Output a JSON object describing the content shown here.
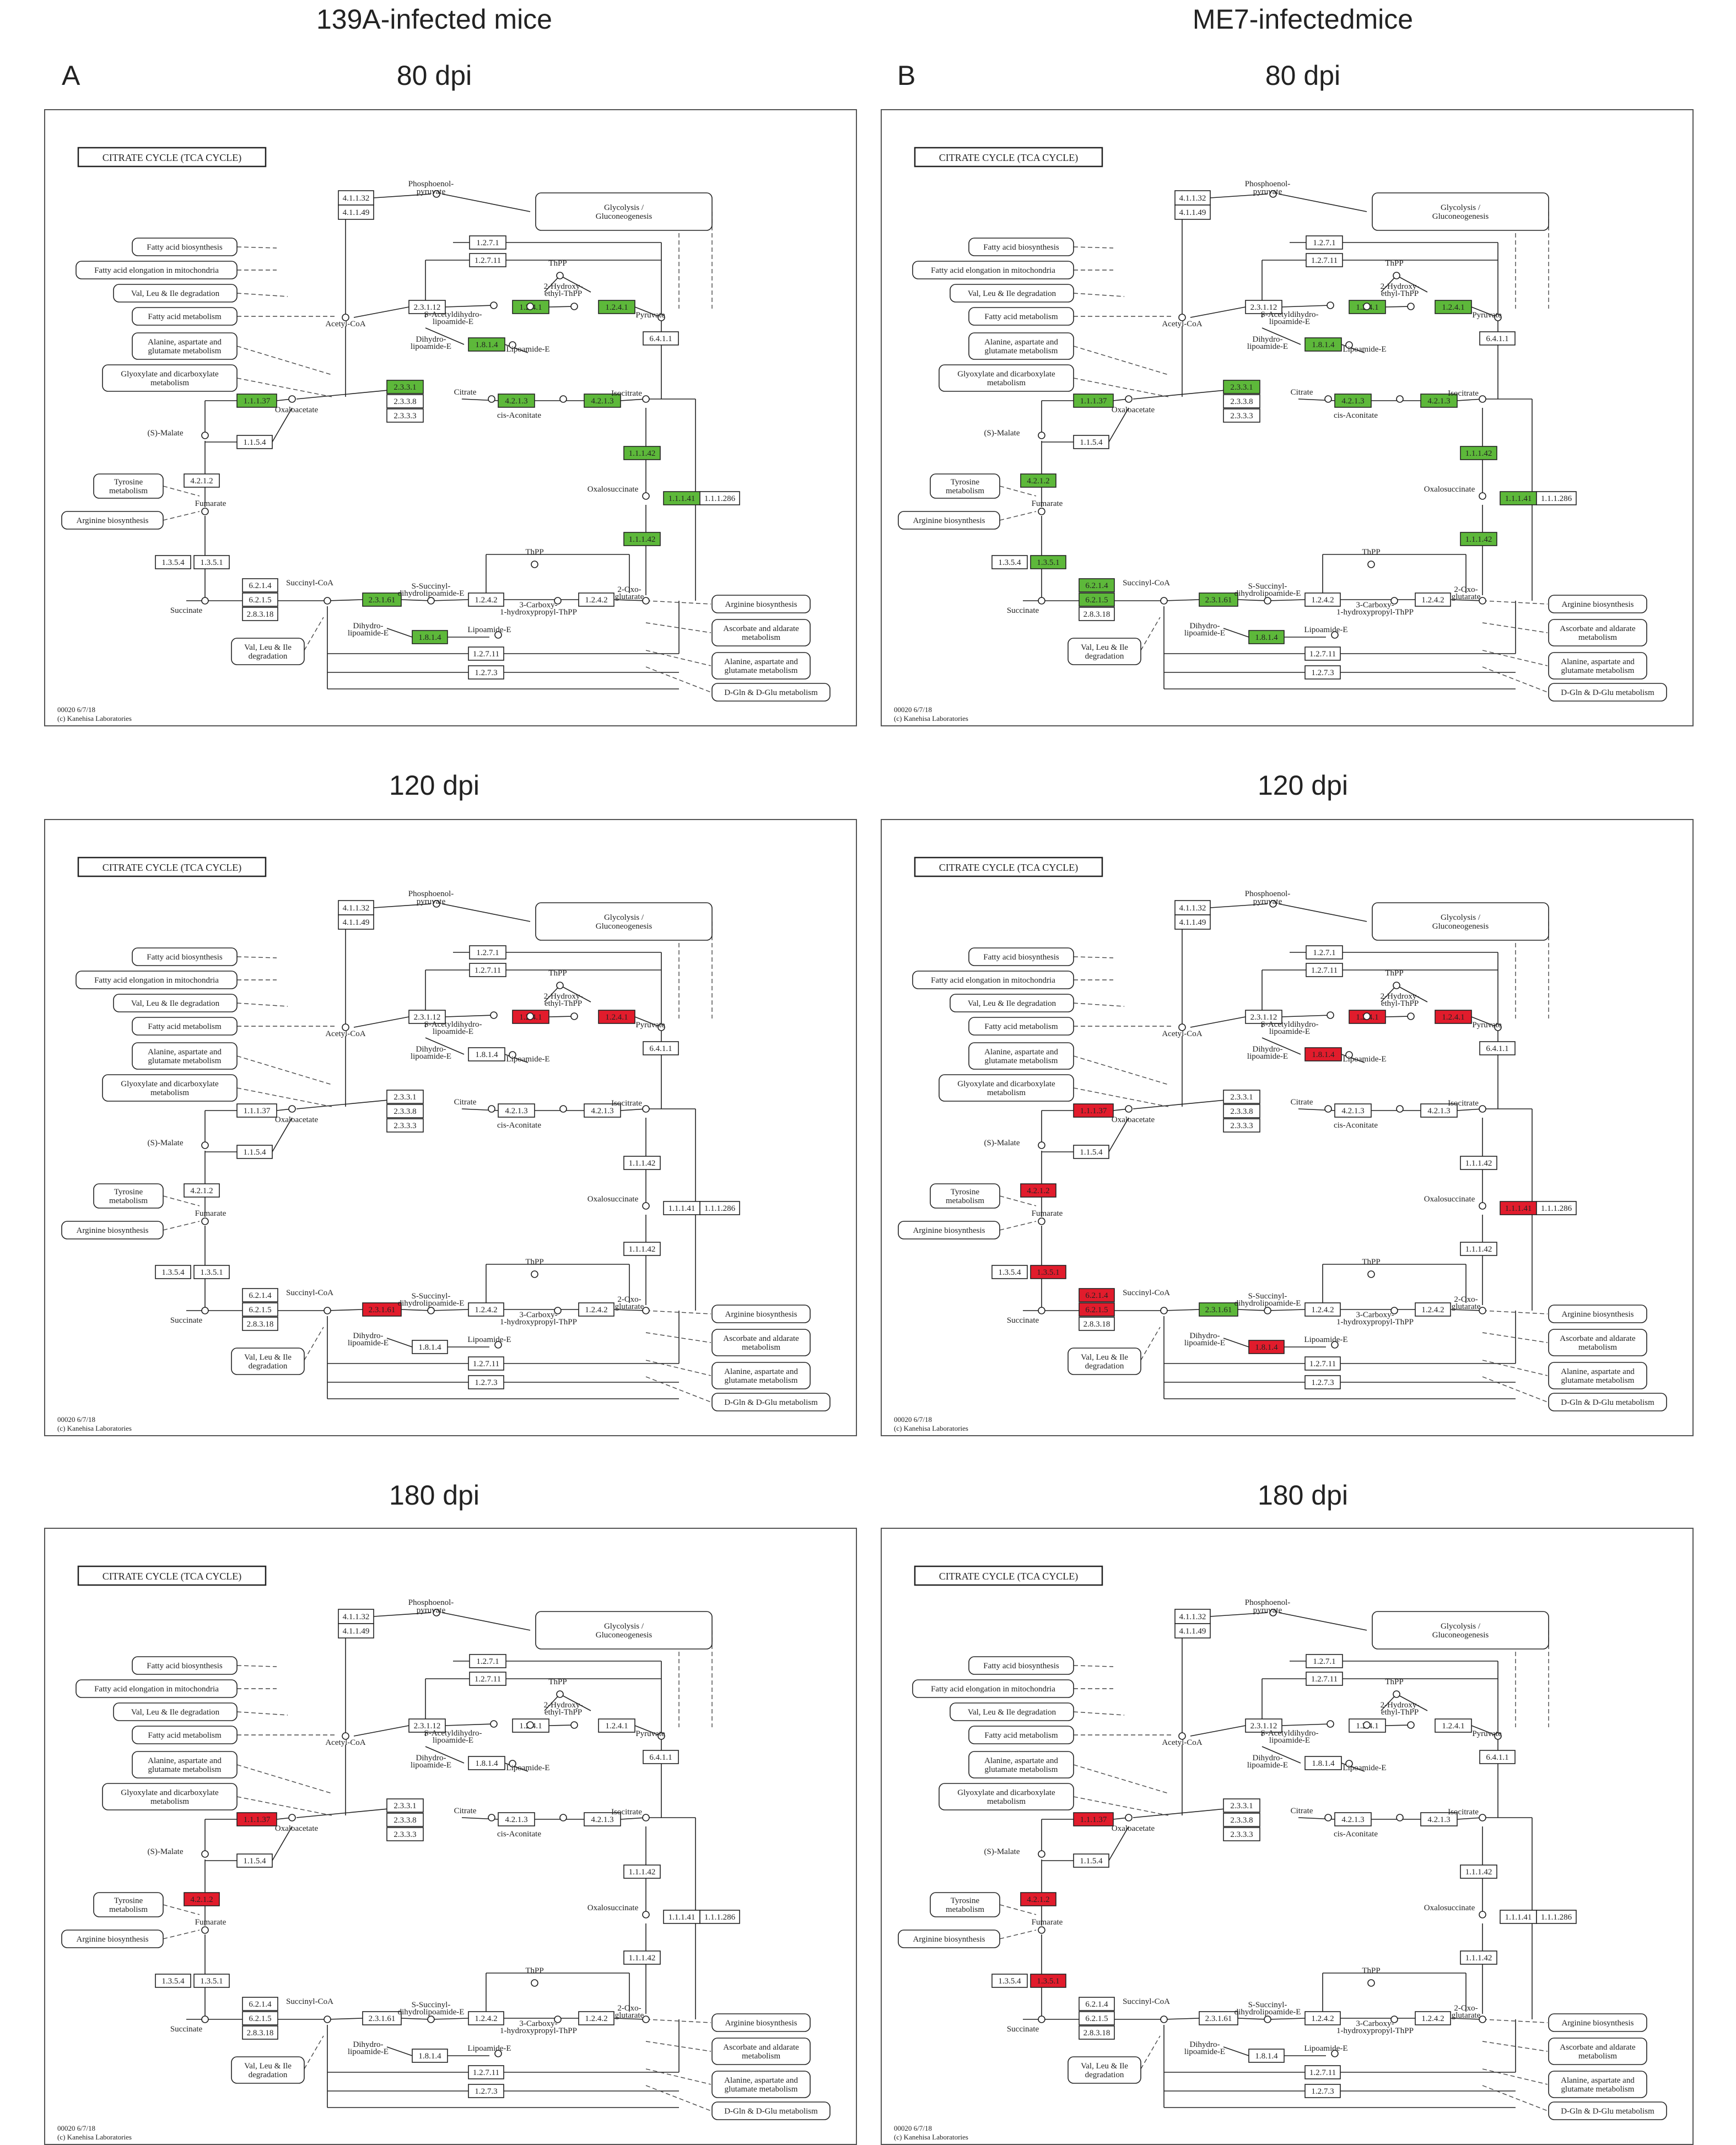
{
  "columns": [
    {
      "title": "139A-infected mice",
      "letter": "A"
    },
    {
      "title": "ME7-infectedmice",
      "letter": "B"
    }
  ],
  "rows": [
    "80 dpi",
    "120 dpi",
    "180 dpi"
  ],
  "pathway": {
    "title": "CITRATE CYCLE (TCA CYCLE)",
    "footer_line1": "00020 6/7/18",
    "footer_line2": "(c) Kanehisa Laboratories",
    "enzymes": [
      {
        "id": "e41132",
        "label": "4.1.1.32"
      },
      {
        "id": "e41149",
        "label": "4.1.1.49"
      },
      {
        "id": "e1271a",
        "label": "1.2.7.1"
      },
      {
        "id": "e12711a",
        "label": "1.2.7.11"
      },
      {
        "id": "e23112",
        "label": "2.3.1.12"
      },
      {
        "id": "e1241a",
        "label": "1.2.4.1"
      },
      {
        "id": "e1241b",
        "label": "1.2.4.1"
      },
      {
        "id": "e1814a",
        "label": "1.8.1.4"
      },
      {
        "id": "e6411",
        "label": "6.4.1.1"
      },
      {
        "id": "e2331",
        "label": "2.3.3.1"
      },
      {
        "id": "e2338",
        "label": "2.3.3.8"
      },
      {
        "id": "e2333",
        "label": "2.3.3.3"
      },
      {
        "id": "e4213a",
        "label": "4.2.1.3"
      },
      {
        "id": "e4213b",
        "label": "4.2.1.3"
      },
      {
        "id": "e11137",
        "label": "1.1.1.37"
      },
      {
        "id": "e1154",
        "label": "1.1.5.4"
      },
      {
        "id": "e11142a",
        "label": "1.1.1.42"
      },
      {
        "id": "e11141",
        "label": "1.1.1.41"
      },
      {
        "id": "e111286",
        "label": "1.1.1.286"
      },
      {
        "id": "e11142b",
        "label": "1.1.1.42"
      },
      {
        "id": "e4212",
        "label": "4.2.1.2"
      },
      {
        "id": "e1354",
        "label": "1.3.5.4"
      },
      {
        "id": "e1351",
        "label": "1.3.5.1"
      },
      {
        "id": "e6214",
        "label": "6.2.1.4"
      },
      {
        "id": "e6215",
        "label": "6.2.1.5"
      },
      {
        "id": "e28318",
        "label": "2.8.3.18"
      },
      {
        "id": "e23161",
        "label": "2.3.1.61"
      },
      {
        "id": "e1242",
        "label": "1.2.4.2"
      },
      {
        "id": "e1242b",
        "label": "1.2.4.2"
      },
      {
        "id": "e1814b",
        "label": "1.8.1.4"
      },
      {
        "id": "e12711b",
        "label": "1.2.7.11"
      },
      {
        "id": "e1273",
        "label": "1.2.7.3"
      }
    ],
    "compounds": [
      {
        "id": "pep",
        "label": "Phosphoenol-"
      },
      {
        "id": "pep2",
        "label": "pyruvate"
      },
      {
        "id": "acoa",
        "label": "Acetyl-CoA"
      },
      {
        "id": "pyr",
        "label": "Pyruvate"
      },
      {
        "id": "thpp1",
        "label": "ThPP"
      },
      {
        "id": "hyd1",
        "label": "2-Hydroxy-"
      },
      {
        "id": "hyd2",
        "label": "ethyl-ThPP"
      },
      {
        "id": "sac1",
        "label": "S-Acetyldihydro-"
      },
      {
        "id": "sac2",
        "label": "lipoamide-E"
      },
      {
        "id": "dih1",
        "label": "Dihydro-"
      },
      {
        "id": "dih2",
        "label": "lipoamide-E"
      },
      {
        "id": "lip1",
        "label": "Lipoamide-E"
      },
      {
        "id": "cit",
        "label": "Citrate"
      },
      {
        "id": "oaa",
        "label": "Oxaloacetate"
      },
      {
        "id": "cis",
        "label": "cis-Aconitate"
      },
      {
        "id": "iso",
        "label": "Isocitrate"
      },
      {
        "id": "mal",
        "label": "(S)-Malate"
      },
      {
        "id": "oxs",
        "label": "Oxalosuccinate"
      },
      {
        "id": "fum",
        "label": "Fumarate"
      },
      {
        "id": "suc",
        "label": "Succinate"
      },
      {
        "id": "scoa",
        "label": "Succinyl-CoA"
      },
      {
        "id": "ssuc1",
        "label": "S-Succinyl-"
      },
      {
        "id": "ssuc2",
        "label": "dihydrolipoamide-E"
      },
      {
        "id": "dih3",
        "label": "Dihydro-"
      },
      {
        "id": "dih4",
        "label": "lipoamide-E"
      },
      {
        "id": "lip2",
        "label": "Lipoamide-E"
      },
      {
        "id": "thpp2",
        "label": "ThPP"
      },
      {
        "id": "carb1",
        "label": "3-Carboxy-"
      },
      {
        "id": "carb2",
        "label": "1-hydroxypropyl-ThPP"
      },
      {
        "id": "oxo1",
        "label": "2-Oxo-"
      },
      {
        "id": "oxo2",
        "label": "glutarate"
      }
    ],
    "maps": [
      {
        "id": "glyc1",
        "label": "Glycolysis /"
      },
      {
        "id": "glyc2",
        "label": "Gluconeogenesis"
      },
      {
        "id": "fab",
        "label": "Fatty acid biosynthesis"
      },
      {
        "id": "fae",
        "label": "Fatty acid elongation in mitochondria"
      },
      {
        "id": "vli",
        "label": "Val, Leu & Ile degradation"
      },
      {
        "id": "fam",
        "label": "Fatty acid metabolism"
      },
      {
        "id": "ala1",
        "label": "Alanine, aspartate and"
      },
      {
        "id": "ala2",
        "label": "glutamate metabolism"
      },
      {
        "id": "gly1",
        "label": "Glyoxylate and dicarboxylate"
      },
      {
        "id": "gly2",
        "label": "metabolism"
      },
      {
        "id": "tyr1",
        "label": "Tyrosine"
      },
      {
        "id": "tyr2",
        "label": "metabolism"
      },
      {
        "id": "arg",
        "label": "Arginine biosynthesis"
      },
      {
        "id": "vli2a",
        "label": "Val, Leu & Ile"
      },
      {
        "id": "vli2b",
        "label": "degradation"
      },
      {
        "id": "argr",
        "label": "Arginine biosynthesis"
      },
      {
        "id": "asc1",
        "label": "Ascorbate and aldarate"
      },
      {
        "id": "asc2",
        "label": "metabolism"
      },
      {
        "id": "alr1",
        "label": "Alanine, aspartate and"
      },
      {
        "id": "alr2",
        "label": "glutamate metabolism"
      },
      {
        "id": "dgln",
        "label": "D-Gln & D-Glu metabolism"
      }
    ]
  },
  "colors": {
    "up": "#5db83a",
    "down": "#e11c2c",
    "none": "#ffffff"
  },
  "highlights": [
    {
      "e1241a": "up",
      "e1241b": "up",
      "e1814a": "up",
      "e2331": "up",
      "e4213a": "up",
      "e4213b": "up",
      "e11137": "up",
      "e11142a": "up",
      "e11141": "up",
      "e11142b": "up",
      "e23161": "up",
      "e1814b": "up"
    },
    {
      "e1241a": "up",
      "e1241b": "up",
      "e1814a": "up",
      "e2331": "up",
      "e4213a": "up",
      "e4213b": "up",
      "e11137": "up",
      "e11142a": "up",
      "e11141": "up",
      "e11142b": "up",
      "e4212": "up",
      "e1351": "up",
      "e6214": "up",
      "e6215": "up",
      "e23161": "up",
      "e1814b": "up"
    },
    {
      "e1241a": "down",
      "e1241b": "down",
      "e23161": "down"
    },
    {
      "e1241a": "down",
      "e1241b": "down",
      "e1814a": "down",
      "e11137": "down",
      "e4212": "down",
      "e1351": "down",
      "e11141": "down",
      "e6214": "down",
      "e6215": "down",
      "e23161": "up",
      "e1814b": "down"
    },
    {
      "e11137": "down",
      "e4212": "down"
    },
    {
      "e11137": "down",
      "e4212": "down",
      "e1351": "down"
    }
  ]
}
